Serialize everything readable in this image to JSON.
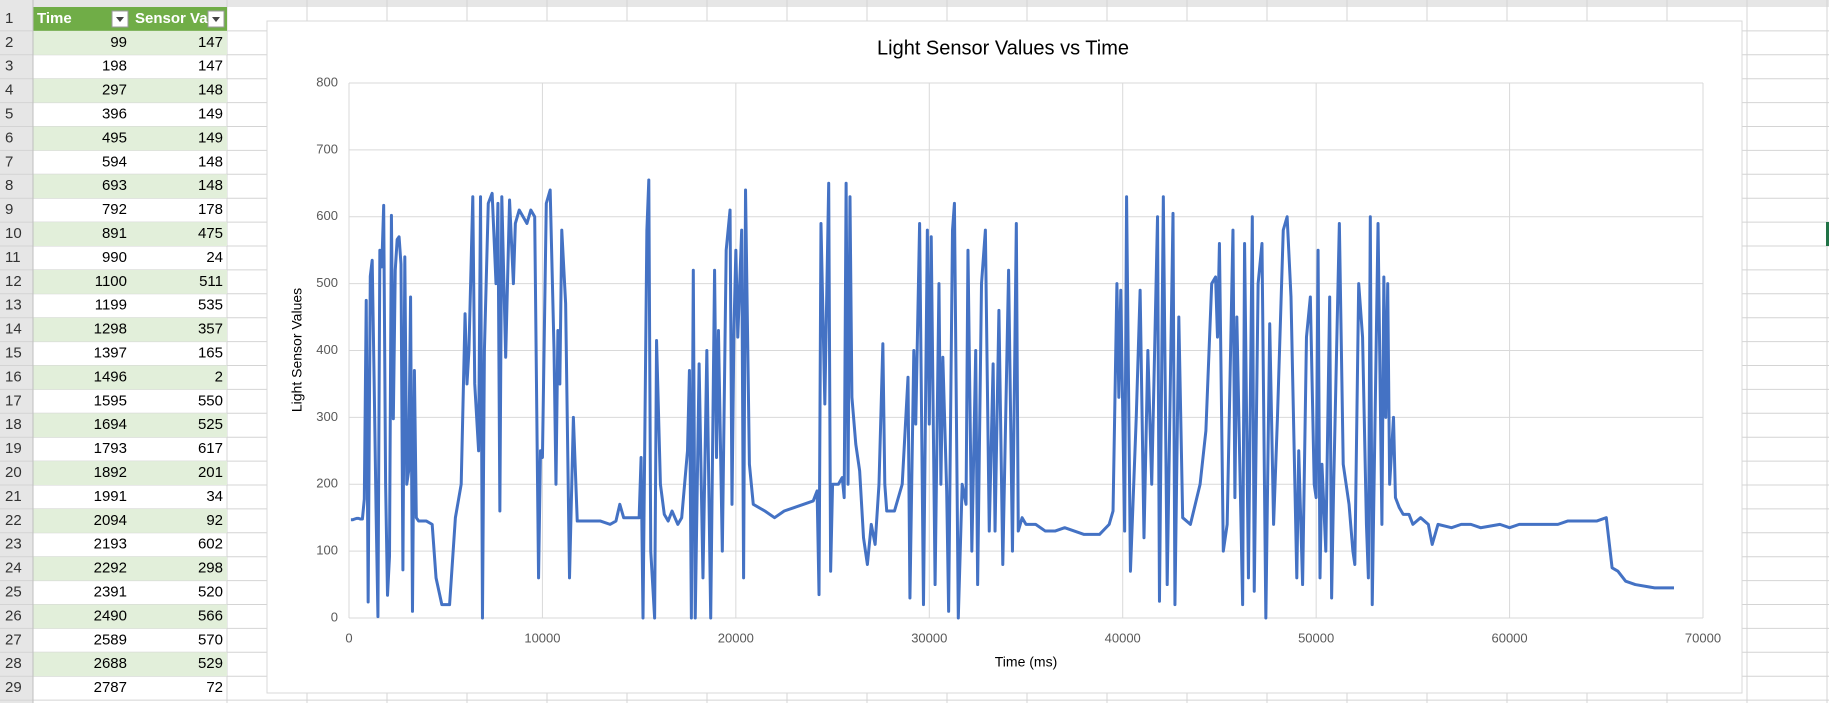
{
  "sheet": {
    "row_numbers": [
      1,
      2,
      3,
      4,
      5,
      6,
      7,
      8,
      9,
      10,
      11,
      12,
      13,
      14,
      15,
      16,
      17,
      18,
      19,
      20,
      21,
      22,
      23,
      24,
      25,
      26,
      27,
      28,
      29
    ],
    "columns": [
      "Time",
      "Sensor Va"
    ],
    "rows": [
      [
        99,
        147
      ],
      [
        198,
        147
      ],
      [
        297,
        148
      ],
      [
        396,
        149
      ],
      [
        495,
        149
      ],
      [
        594,
        148
      ],
      [
        693,
        148
      ],
      [
        792,
        178
      ],
      [
        891,
        475
      ],
      [
        990,
        24
      ],
      [
        1100,
        511
      ],
      [
        1199,
        535
      ],
      [
        1298,
        357
      ],
      [
        1397,
        165
      ],
      [
        1496,
        2
      ],
      [
        1595,
        550
      ],
      [
        1694,
        525
      ],
      [
        1793,
        617
      ],
      [
        1892,
        201
      ],
      [
        1991,
        34
      ],
      [
        2094,
        92
      ],
      [
        2193,
        602
      ],
      [
        2292,
        298
      ],
      [
        2391,
        520
      ],
      [
        2490,
        566
      ],
      [
        2589,
        570
      ],
      [
        2688,
        529
      ],
      [
        2787,
        72
      ]
    ]
  },
  "chart_data": {
    "type": "line",
    "title": "Light Sensor Values vs Time",
    "x_label": "Time (ms)",
    "y_label": "Light Sensor Values",
    "color": "#4472c4",
    "grid": true,
    "xlim": [
      0,
      70000
    ],
    "xticks": [
      0,
      10000,
      20000,
      30000,
      40000,
      50000,
      60000,
      70000
    ],
    "ylim": [
      0,
      800
    ],
    "yticks": [
      0,
      100,
      200,
      300,
      400,
      500,
      600,
      700,
      800
    ],
    "x": [
      99,
      198,
      297,
      396,
      495,
      594,
      693,
      792,
      891,
      990,
      1100,
      1199,
      1298,
      1397,
      1496,
      1595,
      1694,
      1793,
      1892,
      1991,
      2094,
      2193,
      2292,
      2391,
      2490,
      2589,
      2688,
      2787,
      2886,
      2985,
      3084,
      3183,
      3282,
      3381,
      3480,
      3600,
      4000,
      4300,
      4500,
      4800,
      5200,
      5500,
      5800,
      6000,
      6100,
      6200,
      6400,
      6500,
      6700,
      6800,
      6900,
      7000,
      7200,
      7400,
      7600,
      7700,
      7800,
      7900,
      8100,
      8300,
      8500,
      8600,
      8800,
      9000,
      9200,
      9400,
      9600,
      9800,
      9900,
      10000,
      10200,
      10400,
      10600,
      10700,
      10800,
      10900,
      11000,
      11200,
      11400,
      11600,
      11800,
      12500,
      13000,
      13500,
      13800,
      14000,
      14200,
      14500,
      15000,
      15100,
      15200,
      15400,
      15500,
      15600,
      15800,
      15900,
      16100,
      16300,
      16500,
      16700,
      17000,
      17200,
      17500,
      17600,
      17700,
      17800,
      17900,
      18100,
      18300,
      18500,
      18700,
      18900,
      19000,
      19100,
      19300,
      19500,
      19700,
      19800,
      19900,
      20000,
      20100,
      20300,
      20400,
      20500,
      20700,
      20900,
      21500,
      22000,
      22500,
      23000,
      23500,
      24000,
      24200,
      24300,
      24400,
      24600,
      24800,
      24900,
      25000,
      25300,
      25500,
      25600,
      25700,
      25800,
      25900,
      26000,
      26200,
      26400,
      26600,
      26800,
      27000,
      27200,
      27400,
      27600,
      27700,
      27800,
      28200,
      28600,
      28900,
      29000,
      29200,
      29300,
      29500,
      29700,
      29900,
      30000,
      30100,
      30300,
      30500,
      30600,
      30700,
      30900,
      31000,
      31200,
      31300,
      31500,
      31700,
      31900,
      32000,
      32200,
      32400,
      32500,
      32700,
      32900,
      33100,
      33300,
      33400,
      33600,
      33800,
      34100,
      34300,
      34500,
      34600,
      34800,
      35000,
      35500,
      36000,
      36500,
      37000,
      37500,
      38000,
      38800,
      39300,
      39500,
      39700,
      39800,
      39900,
      40100,
      40200,
      40400,
      40700,
      40900,
      41100,
      41300,
      41500,
      41800,
      41900,
      42100,
      42300,
      42600,
      42700,
      42900,
      43100,
      43500,
      44000,
      44300,
      44600,
      44800,
      44900,
      45000,
      45200,
      45400,
      45700,
      45800,
      45900,
      46200,
      46300,
      46500,
      46700,
      46800,
      47000,
      47200,
      47400,
      47600,
      47800,
      48000,
      48300,
      48500,
      48700,
      48900,
      49000,
      49100,
      49300,
      49500,
      49700,
      49900,
      50000,
      50100,
      50200,
      50300,
      50500,
      50700,
      50800,
      50900,
      51200,
      51400,
      51700,
      51900,
      52000,
      52200,
      52400,
      52600,
      52700,
      52800,
      52900,
      53200,
      53400,
      53500,
      53600,
      53700,
      53800,
      54000,
      54100,
      54300,
      54500,
      54800,
      55000,
      55400,
      55800,
      56000,
      56300,
      57000,
      57500,
      58000,
      58500,
      59500,
      60000,
      60500,
      61500,
      62500,
      63000,
      64000,
      64500,
      65000,
      65300,
      65600,
      66000,
      66500,
      67500,
      68500
    ],
    "values": [
      147,
      147,
      148,
      149,
      149,
      148,
      148,
      178,
      475,
      24,
      511,
      535,
      357,
      165,
      2,
      550,
      525,
      617,
      201,
      34,
      92,
      602,
      298,
      520,
      566,
      570,
      529,
      72,
      540,
      200,
      220,
      480,
      10,
      370,
      150,
      145,
      145,
      140,
      60,
      20,
      20,
      150,
      200,
      455,
      350,
      400,
      630,
      350,
      250,
      630,
      0,
      400,
      620,
      635,
      500,
      620,
      160,
      630,
      390,
      625,
      500,
      590,
      610,
      600,
      590,
      610,
      600,
      60,
      250,
      240,
      620,
      640,
      400,
      200,
      430,
      350,
      580,
      470,
      60,
      300,
      145,
      145,
      145,
      140,
      145,
      170,
      150,
      150,
      150,
      240,
      0,
      580,
      655,
      100,
      0,
      415,
      200,
      155,
      145,
      160,
      140,
      150,
      250,
      370,
      0,
      520,
      0,
      380,
      60,
      400,
      0,
      520,
      240,
      430,
      100,
      550,
      610,
      170,
      430,
      550,
      420,
      580,
      60,
      640,
      230,
      170,
      160,
      150,
      160,
      165,
      170,
      175,
      190,
      35,
      590,
      320,
      650,
      70,
      200,
      200,
      210,
      180,
      650,
      200,
      630,
      330,
      260,
      220,
      120,
      80,
      140,
      110,
      200,
      410,
      200,
      160,
      160,
      200,
      360,
      30,
      400,
      290,
      590,
      20,
      580,
      290,
      570,
      50,
      500,
      200,
      390,
      190,
      10,
      580,
      620,
      0,
      200,
      170,
      550,
      100,
      400,
      50,
      500,
      580,
      130,
      380,
      130,
      460,
      80,
      520,
      100,
      590,
      130,
      150,
      140,
      140,
      130,
      130,
      135,
      130,
      125,
      125,
      140,
      160,
      500,
      330,
      490,
      130,
      630,
      70,
      300,
      490,
      120,
      400,
      200,
      600,
      25,
      630,
      50,
      605,
      20,
      450,
      150,
      140,
      200,
      280,
      500,
      510,
      420,
      560,
      100,
      140,
      580,
      180,
      450,
      20,
      560,
      60,
      600,
      40,
      500,
      560,
      0,
      440,
      140,
      300,
      580,
      600,
      480,
      200,
      60,
      250,
      50,
      420,
      480,
      200,
      180,
      550,
      60,
      230,
      100,
      480,
      30,
      190,
      590,
      230,
      170,
      100,
      80,
      500,
      420,
      140,
      60,
      600,
      20,
      590,
      140,
      510,
      300,
      500,
      200,
      300,
      180,
      165,
      155,
      155,
      140,
      150,
      140,
      110,
      140,
      135,
      140,
      140,
      135,
      140,
      135,
      140,
      140,
      140,
      145,
      145,
      145,
      150,
      75,
      70,
      55,
      50,
      45,
      45
    ]
  }
}
